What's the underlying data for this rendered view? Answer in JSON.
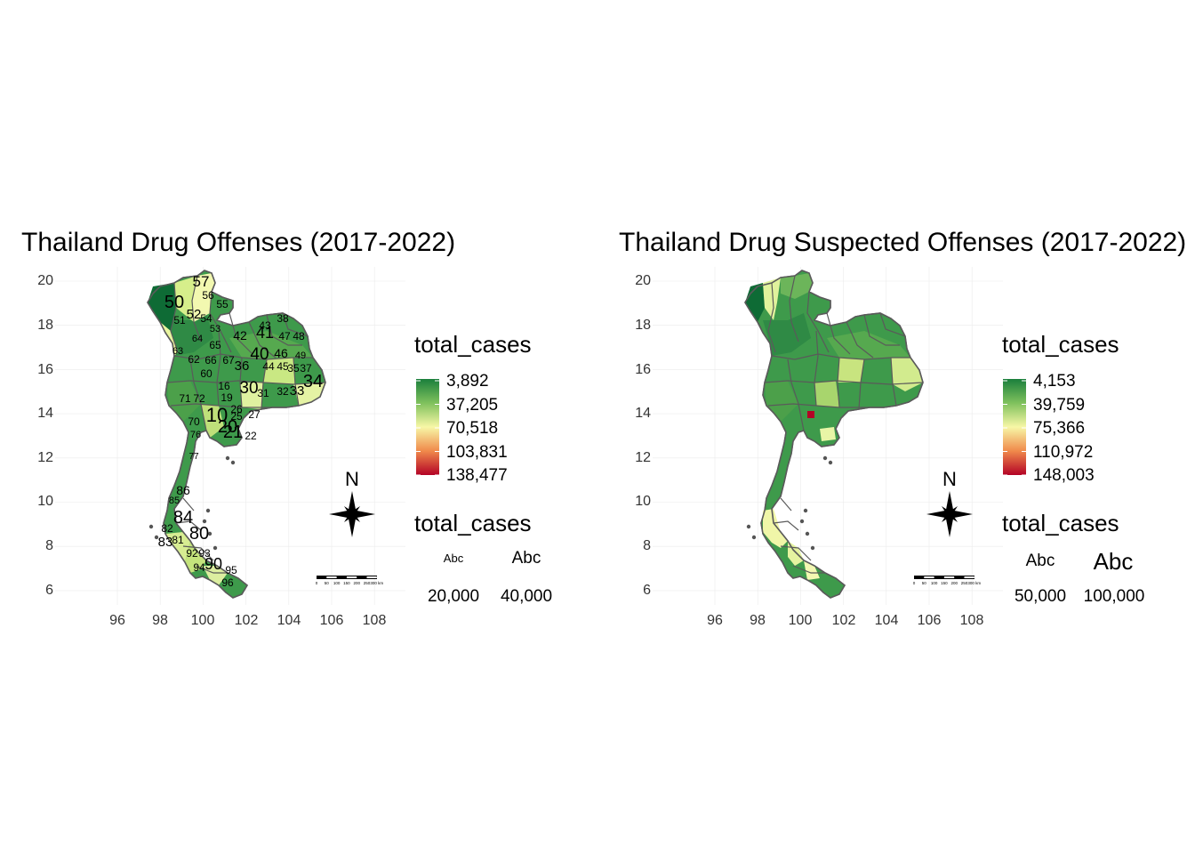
{
  "left": {
    "title": "Thailand Drug Offenses (2017-2022)",
    "y_ticks": [
      "20",
      "18",
      "16",
      "14",
      "12",
      "10",
      "8",
      "6"
    ],
    "x_ticks": [
      "96",
      "98",
      "100",
      "102",
      "104",
      "106",
      "108"
    ],
    "legend_fill_title": "total_cases",
    "legend_fill_labels": [
      "3,892",
      "37,205",
      "70,518",
      "103,831",
      "138,477"
    ],
    "legend_size_title": "total_cases",
    "size_abc": [
      "Abc",
      "Abc"
    ],
    "size_values": [
      "20,000",
      "40,000"
    ],
    "north_label": "N",
    "scale_bar_labels": [
      "0",
      "50",
      "100",
      "150",
      "200",
      "250",
      "300 km"
    ],
    "region_labels": [
      "57",
      "56",
      "55",
      "50",
      "52",
      "54",
      "51",
      "53",
      "43",
      "38",
      "42",
      "41",
      "47",
      "48",
      "64",
      "65",
      "63",
      "62",
      "66",
      "67",
      "40",
      "46",
      "49",
      "45",
      "44",
      "35",
      "37",
      "60",
      "36",
      "30",
      "34",
      "16",
      "31",
      "32",
      "33",
      "71",
      "72",
      "19",
      "26",
      "25",
      "27",
      "70",
      "10",
      "20",
      "21",
      "22",
      "76",
      "77",
      "86",
      "85",
      "84",
      "82",
      "81",
      "80",
      "83",
      "92",
      "93",
      "90",
      "94",
      "95",
      "96"
    ]
  },
  "right": {
    "title": "Thailand Drug Suspected Offenses (2017-2022)",
    "y_ticks": [
      "20",
      "18",
      "16",
      "14",
      "12",
      "10",
      "8",
      "6"
    ],
    "x_ticks": [
      "96",
      "98",
      "100",
      "102",
      "104",
      "106",
      "108"
    ],
    "legend_fill_title": "total_cases",
    "legend_fill_labels": [
      "4,153",
      "39,759",
      "75,366",
      "110,972",
      "148,003"
    ],
    "legend_size_title": "total_cases",
    "size_abc": [
      "Abc",
      "Abc"
    ],
    "size_values": [
      "50,000",
      "100,000"
    ],
    "north_label": "N",
    "scale_bar_labels": [
      "0",
      "50",
      "100",
      "150",
      "200",
      "250",
      "300 km"
    ]
  },
  "colors": {
    "scale": [
      "#1a7f3c",
      "#7fc15d",
      "#f7f7a6",
      "#f08a4b",
      "#b30326"
    ],
    "border": "#5a5a5a",
    "grid": "#ebebeb"
  }
}
